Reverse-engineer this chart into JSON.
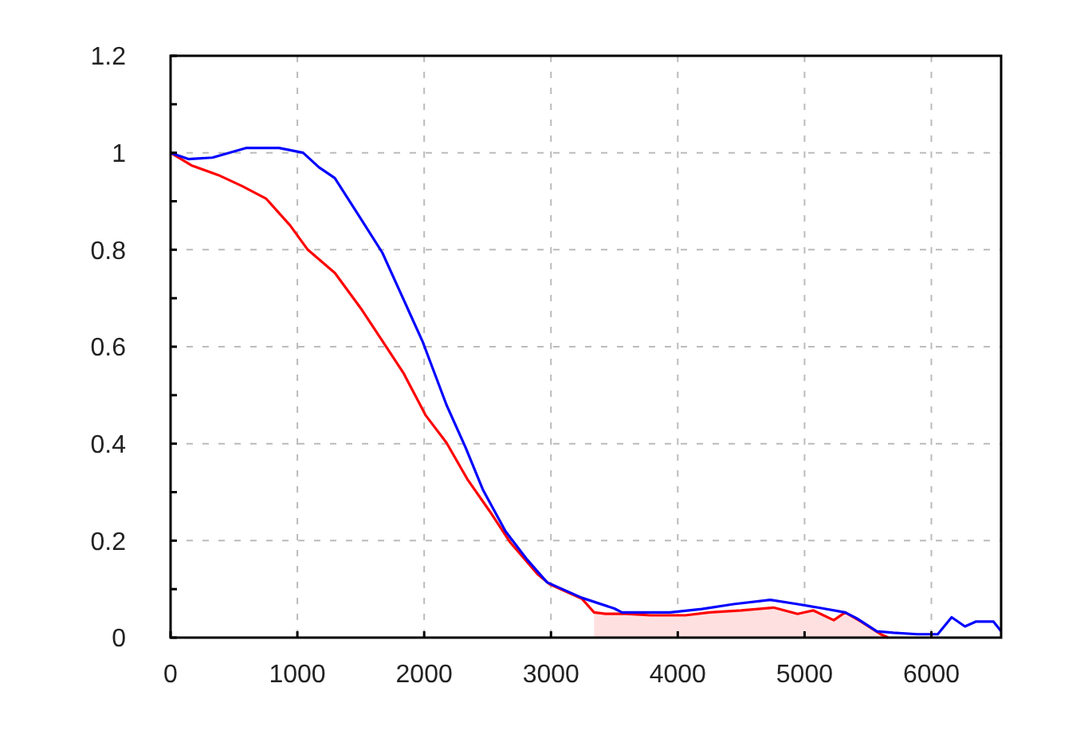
{
  "chart_data": {
    "type": "line",
    "xlim": [
      0,
      6550
    ],
    "ylim": [
      0,
      1.2
    ],
    "xticks": [
      0,
      1000,
      2000,
      3000,
      4000,
      5000,
      6000
    ],
    "yticks": [
      0,
      {
        "value": 0.1,
        "label": null
      },
      0.2,
      {
        "value": 0.3,
        "label": null
      },
      0.4,
      {
        "value": 0.5,
        "label": null
      },
      0.6,
      {
        "value": 0.7,
        "label": null
      },
      0.8,
      {
        "value": 0.9,
        "label": null
      },
      1,
      {
        "value": 1.1,
        "label": null
      },
      1.2
    ],
    "grid": true,
    "line_style": "solid",
    "series": [
      {
        "type": "area",
        "color": "#ffe0e0",
        "x": [
          3340,
          3430,
          3585,
          3785,
          4060,
          4250,
          4500,
          4755,
          4945,
          5070,
          5230,
          5320,
          5445,
          5600,
          5660
        ],
        "values": [
          0.052,
          0.049,
          0.049,
          0.046,
          0.046,
          0.052,
          0.056,
          0.062,
          0.049,
          0.056,
          0.036,
          0.052,
          0.033,
          0.007,
          0
        ]
      },
      {
        "color": "#ff0000",
        "x": [
          0,
          164,
          377,
          566,
          755,
          943,
          1082,
          1296,
          1509,
          1673,
          1836,
          2013,
          2176,
          2340,
          2516,
          2680,
          2893,
          2990,
          3245,
          3340,
          3430,
          3585,
          3785,
          4060,
          4250,
          4500,
          4755,
          4945,
          5070,
          5230,
          5320,
          5445,
          5600,
          5660
        ],
        "values": [
          1.0,
          0.974,
          0.954,
          0.931,
          0.905,
          0.85,
          0.8,
          0.752,
          0.676,
          0.611,
          0.546,
          0.458,
          0.402,
          0.327,
          0.261,
          0.196,
          0.131,
          0.11,
          0.08,
          0.052,
          0.049,
          0.049,
          0.046,
          0.046,
          0.052,
          0.056,
          0.062,
          0.049,
          0.056,
          0.036,
          0.052,
          0.033,
          0.007,
          0
        ]
      },
      {
        "color": "#0000ff",
        "x": [
          0,
          140,
          330,
          600,
          855,
          1045,
          1170,
          1295,
          1510,
          1670,
          1800,
          1987,
          2176,
          2327,
          2465,
          2642,
          2805,
          2969,
          3245,
          3500,
          3560,
          3940,
          4190,
          4440,
          4730,
          4945,
          5105,
          5320,
          5410,
          5570,
          5700,
          5890,
          6050,
          6160,
          6265,
          6350,
          6490,
          6550
        ],
        "values": [
          1.0,
          0.987,
          0.99,
          1.01,
          1.01,
          1.0,
          0.97,
          0.948,
          0.86,
          0.794,
          0.719,
          0.611,
          0.48,
          0.392,
          0.304,
          0.219,
          0.163,
          0.114,
          0.082,
          0.06,
          0.052,
          0.052,
          0.059,
          0.069,
          0.078,
          0.069,
          0.062,
          0.052,
          0.04,
          0.013,
          0.01,
          0.007,
          0.007,
          0.042,
          0.023,
          0.033,
          0.033,
          0.013
        ]
      }
    ]
  }
}
